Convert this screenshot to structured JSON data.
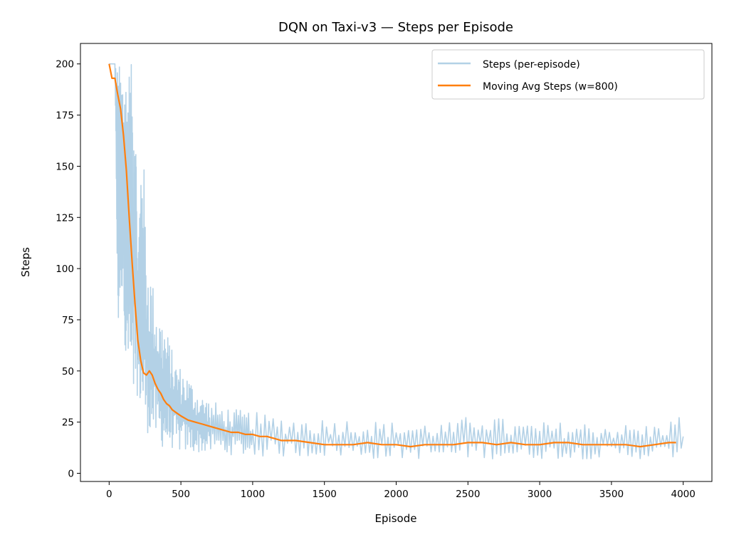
{
  "chart_data": {
    "type": "line",
    "title": "DQN on Taxi-v3 — Steps per Episode",
    "xlabel": "Episode",
    "ylabel": "Steps",
    "xlim": [
      -200,
      4200
    ],
    "ylim": [
      -4,
      210
    ],
    "x_ticks": [
      0,
      500,
      1000,
      1500,
      2000,
      2500,
      3000,
      3500,
      4000
    ],
    "y_ticks": [
      0,
      25,
      50,
      75,
      100,
      125,
      150,
      175,
      200
    ],
    "grid": false,
    "legend_position": "top-right",
    "series": [
      {
        "name": "Steps (per-episode)",
        "color": "#b3d1e6",
        "style": "raw-noisy",
        "x": [
          0,
          40,
          60,
          80,
          100,
          120,
          140,
          160,
          180,
          200,
          230,
          260,
          300,
          340,
          380,
          420,
          460,
          500,
          550,
          600,
          650,
          700,
          800,
          900,
          1000,
          1200,
          1400,
          1600,
          1800,
          2000,
          2200,
          2400,
          2600,
          2800,
          3000,
          3200,
          3400,
          3600,
          3800,
          4000
        ],
        "low": [
          200,
          200,
          62,
          85,
          90,
          35,
          47,
          24,
          30,
          40,
          22,
          20,
          18,
          14,
          12,
          12,
          12,
          10,
          10,
          10,
          10,
          10,
          9,
          9,
          8,
          8,
          8,
          8,
          7,
          7,
          7,
          7,
          7,
          7,
          7,
          7,
          7,
          7,
          7,
          7
        ],
        "high": [
          200,
          200,
          200,
          200,
          200,
          200,
          200,
          200,
          200,
          110,
          180,
          110,
          95,
          80,
          75,
          65,
          55,
          52,
          48,
          42,
          38,
          36,
          33,
          31,
          30,
          28,
          27,
          27,
          26,
          25,
          25,
          25,
          31,
          25,
          25,
          25,
          25,
          24,
          24,
          29
        ],
        "points_per_segment": 14
      },
      {
        "name": "Moving Avg Steps (w=800)",
        "color": "#ff7f0e",
        "x": [
          0,
          20,
          40,
          60,
          80,
          100,
          120,
          140,
          160,
          180,
          200,
          220,
          240,
          260,
          280,
          300,
          320,
          340,
          360,
          380,
          400,
          420,
          440,
          460,
          480,
          500,
          550,
          600,
          650,
          700,
          750,
          800,
          850,
          900,
          950,
          1000,
          1050,
          1100,
          1150,
          1200,
          1300,
          1400,
          1500,
          1600,
          1700,
          1800,
          1900,
          2000,
          2100,
          2200,
          2300,
          2400,
          2500,
          2600,
          2700,
          2800,
          2900,
          3000,
          3100,
          3200,
          3300,
          3400,
          3500,
          3600,
          3700,
          3800,
          3900,
          3950
        ],
        "values": [
          200,
          193,
          193,
          185,
          178,
          165,
          148,
          125,
          103,
          83,
          65,
          55,
          49,
          48,
          50,
          48,
          44,
          41,
          39,
          36,
          34,
          33,
          31,
          30,
          29,
          28,
          26,
          25,
          24,
          23,
          22,
          21,
          20,
          20,
          19,
          19,
          18,
          18,
          17,
          16,
          16,
          15,
          14,
          14,
          14,
          15,
          14,
          14,
          13,
          14,
          14,
          14,
          15,
          15,
          14,
          15,
          14,
          14,
          15,
          15,
          14,
          14,
          14,
          14,
          13,
          14,
          15,
          15
        ]
      }
    ]
  }
}
